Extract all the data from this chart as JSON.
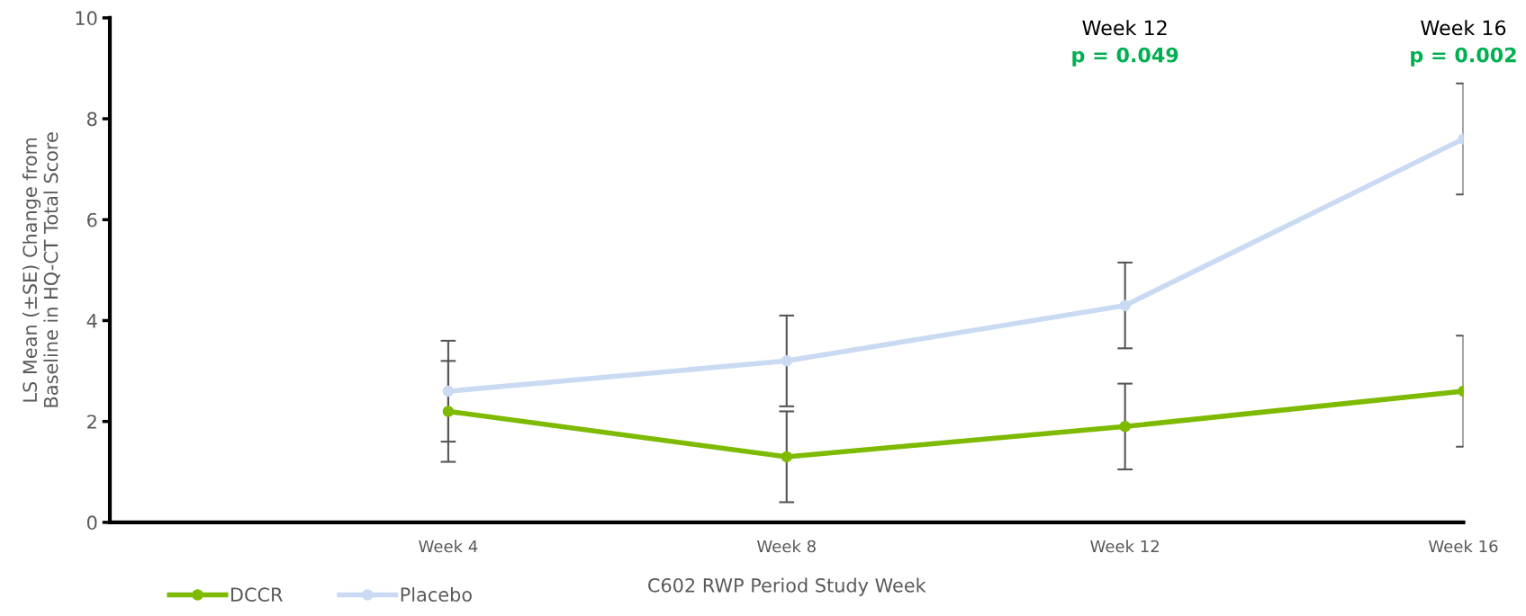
{
  "chart_data": {
    "type": "line",
    "xlabel": "C602 RWP Period Study Week",
    "ylabel": "LS Mean (±SE) Change from\nBaseline in HQ-CT Total Score",
    "categories": [
      null,
      "Week 4",
      "Week 8",
      "Week 12",
      "Week 16"
    ],
    "series": [
      {
        "name": "DCCR",
        "color": "#7dba00",
        "values": [
          null,
          2.2,
          1.3,
          1.9,
          2.6
        ],
        "errors": [
          null,
          1.0,
          0.9,
          0.85,
          1.1
        ]
      },
      {
        "name": "Placebo",
        "color": "#c9daf2",
        "values": [
          null,
          2.6,
          3.2,
          4.3,
          7.6
        ],
        "errors": [
          null,
          1.0,
          0.9,
          0.85,
          1.1
        ]
      }
    ],
    "ylim": [
      0,
      10
    ],
    "yticks": [
      0,
      2,
      4,
      6,
      8,
      10
    ],
    "grid": false,
    "legend": "bottom left",
    "marker": "circle",
    "line_style": "solid",
    "annotations": [
      "Week 12",
      "p = 0.049",
      "Week 16",
      "p = 0.002"
    ]
  }
}
